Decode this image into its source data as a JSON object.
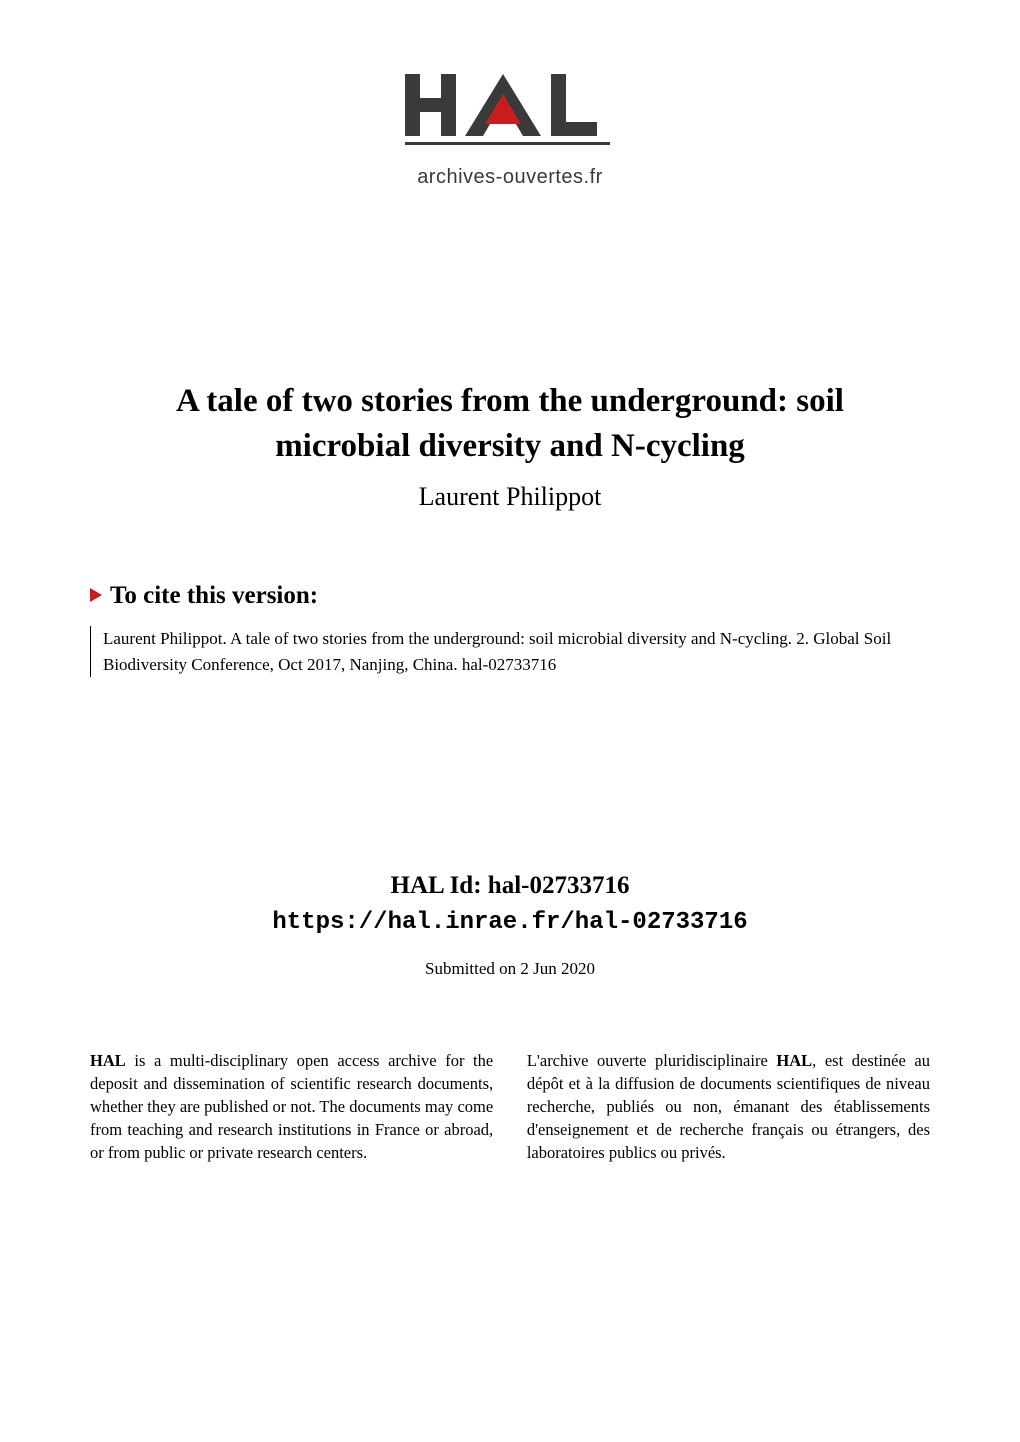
{
  "logo": {
    "letters": "HAL",
    "caption": "archives-ouvertes.fr",
    "bar_color": "#3a3a3a",
    "accent_color": "#c91c1c",
    "text_color": "#3a3a3a"
  },
  "title_line1": "A tale of two stories from the underground: soil",
  "title_line2": "microbial diversity and N-cycling",
  "authors": "Laurent Philippot",
  "cite": {
    "heading": "To cite this version:",
    "arrow_color": "#c91c1c",
    "body": "Laurent Philippot. A tale of two stories from the underground: soil microbial diversity and N-cycling. 2. Global Soil Biodiversity Conference, Oct 2017, Nanjing, China. hal-02733716"
  },
  "hal_id": {
    "label": "HAL Id: hal-02733716",
    "url": "https://hal.inrae.fr/hal-02733716"
  },
  "submitted": "Submitted on 2 Jun 2020",
  "footer": {
    "left_html": "<b>HAL</b> is a multi-disciplinary open access archive for the deposit and dissemination of scientific research documents, whether they are published or not. The documents may come from teaching and research institutions in France or abroad, or from public or private research centers.",
    "right_html": "L'archive ouverte pluridisciplinaire <b>HAL</b>, est destinée au dépôt et à la diffusion de documents scientifiques de niveau recherche, publiés ou non, émanant des établissements d'enseignement et de recherche français ou étrangers, des laboratoires publics ou privés."
  },
  "colors": {
    "background": "#ffffff",
    "text": "#000000"
  },
  "typography": {
    "body_fontsize": 17,
    "title_fontsize": 33,
    "author_fontsize": 26,
    "cite_heading_fontsize": 25,
    "halid_fontsize": 25,
    "footer_fontsize": 16.5
  }
}
